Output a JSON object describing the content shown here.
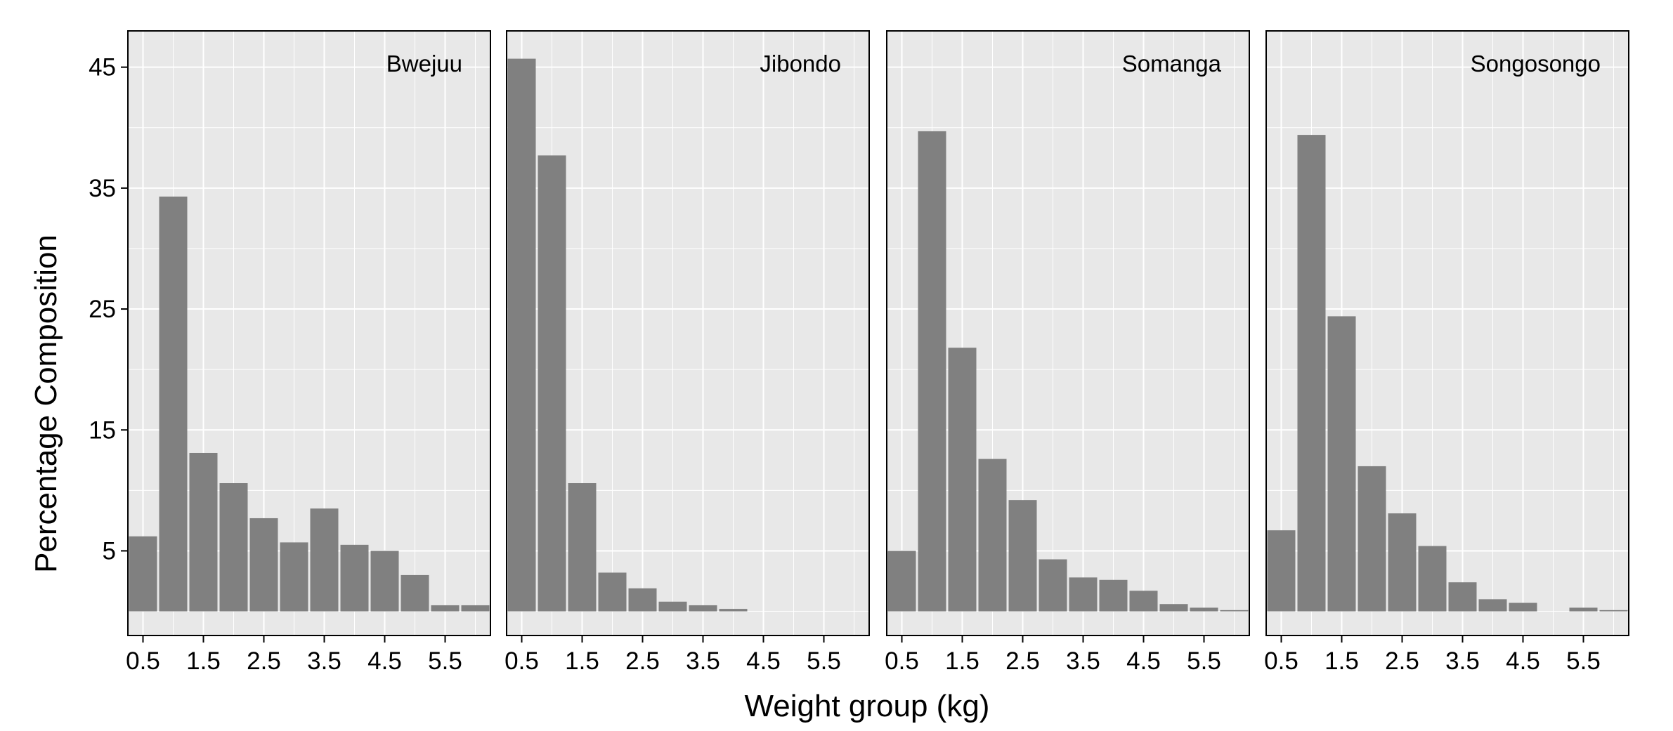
{
  "chart_data": {
    "type": "bar",
    "xlabel": "Weight group (kg)",
    "ylabel": "Percentage Composition",
    "bin_width": 0.5,
    "xlim": [
      0.25,
      6.25
    ],
    "ylim": [
      -2,
      48
    ],
    "x_ticks": [
      0.5,
      1.5,
      2.5,
      3.5,
      4.5,
      5.5
    ],
    "x_tick_labels": [
      "0.5",
      "1.5",
      "2.5",
      "3.5",
      "4.5",
      "5.5"
    ],
    "y_ticks": [
      5,
      15,
      25,
      35,
      45
    ],
    "y_tick_labels": [
      "5",
      "15",
      "25",
      "35",
      "45"
    ],
    "grid": true,
    "bar_color": "#808080",
    "panel_background": "#e8e8e8",
    "gridline_color": "#ffffff",
    "x": [
      0.5,
      1.0,
      1.5,
      2.0,
      2.5,
      3.0,
      3.5,
      4.0,
      4.5,
      5.0,
      5.5,
      6.0
    ],
    "panels": [
      {
        "name": "Bwejuu",
        "values": [
          6.2,
          34.3,
          13.1,
          10.6,
          7.7,
          5.7,
          8.5,
          5.5,
          5.0,
          3.0,
          0.5,
          0.5
        ]
      },
      {
        "name": "Jibondo",
        "values": [
          45.7,
          37.7,
          10.6,
          3.2,
          1.9,
          0.8,
          0.5,
          0.2,
          0,
          0,
          0,
          0
        ]
      },
      {
        "name": "Somanga",
        "values": [
          5.0,
          39.7,
          21.8,
          12.6,
          9.2,
          4.3,
          2.8,
          2.6,
          1.7,
          0.6,
          0.3,
          0.1
        ]
      },
      {
        "name": "Songosongo",
        "values": [
          6.7,
          39.4,
          24.4,
          12.0,
          8.1,
          5.4,
          2.4,
          1.0,
          0.7,
          0,
          0.3,
          0.1
        ]
      }
    ]
  }
}
